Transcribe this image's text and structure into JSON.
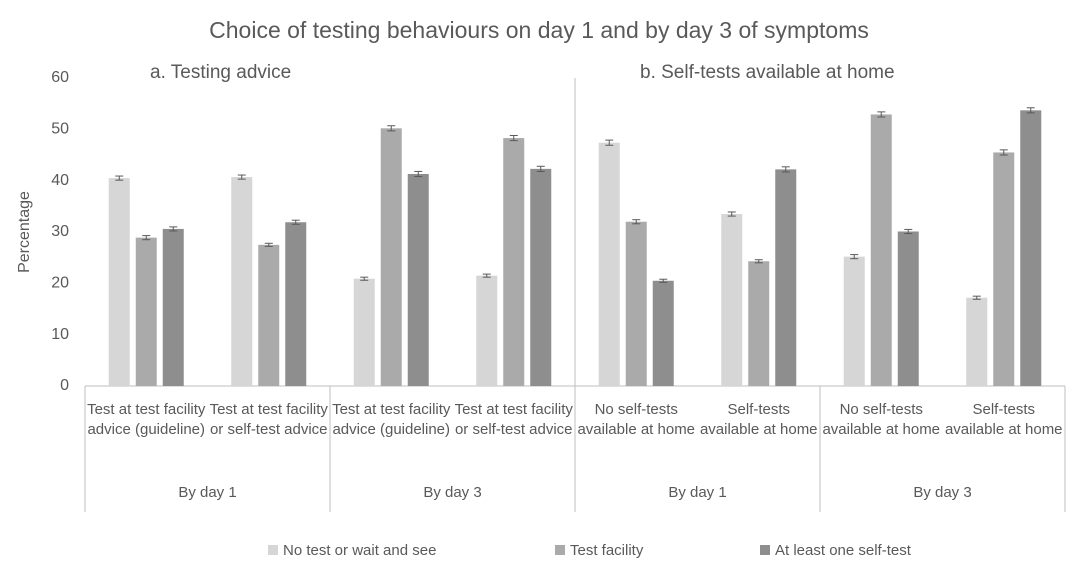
{
  "chart_data": {
    "type": "bar",
    "title": "Choice of testing behaviours on day 1 and by day 3 of symptoms",
    "panels": [
      "a. Testing advice",
      "b. Self-tests available at home"
    ],
    "y_label": "Percentage",
    "categories": [
      "Test at test facility advice (guideline)",
      "Test at test facility or self-test advice",
      "Test at test facility advice (guideline)",
      "Test at test facility or self-test advice",
      "No self-tests available at home",
      "Self-tests available at home",
      "No self-tests available at home",
      "Self-tests available at home"
    ],
    "category_groups": [
      "By day 1",
      "By day 3",
      "By day 1",
      "By day 3"
    ],
    "series": [
      {
        "name": "No test or wait and see",
        "color": "#d6d6d6",
        "values": [
          40.5,
          40.7,
          20.9,
          21.5,
          47.4,
          33.5,
          25.2,
          17.2
        ],
        "errors": [
          0.4,
          0.4,
          0.3,
          0.3,
          0.5,
          0.4,
          0.4,
          0.3
        ]
      },
      {
        "name": "Test facility",
        "color": "#aaaaaa",
        "values": [
          28.9,
          27.5,
          50.2,
          48.3,
          32.0,
          24.3,
          52.9,
          45.5
        ],
        "errors": [
          0.4,
          0.3,
          0.5,
          0.5,
          0.4,
          0.3,
          0.5,
          0.5
        ]
      },
      {
        "name": "At least one self-test",
        "color": "#8e8e8e",
        "values": [
          30.6,
          31.9,
          41.3,
          42.3,
          20.5,
          42.2,
          30.1,
          53.7
        ],
        "errors": [
          0.4,
          0.4,
          0.5,
          0.5,
          0.3,
          0.5,
          0.4,
          0.5
        ]
      }
    ],
    "ylim": [
      0,
      60
    ],
    "yticks": [
      0,
      10,
      20,
      30,
      40,
      50,
      60
    ],
    "grid": false,
    "legend": "bottom"
  }
}
